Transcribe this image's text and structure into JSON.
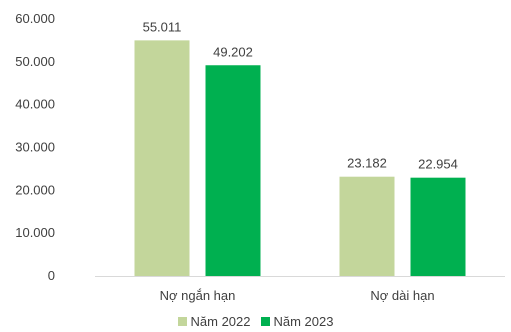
{
  "chart_data": {
    "type": "bar",
    "categories": [
      "Nợ ngắn hạn",
      "Nợ dài hạn"
    ],
    "series": [
      {
        "name": "Năm 2022",
        "values": [
          55011,
          23182
        ],
        "labels": [
          "55.011",
          "23.182"
        ],
        "color": "#c3d69b"
      },
      {
        "name": "Năm 2023",
        "values": [
          49202,
          22954
        ],
        "labels": [
          "49.202",
          "22.954"
        ],
        "color": "#00b050"
      }
    ],
    "ylim": [
      0,
      60000
    ],
    "yticks": [
      0,
      10000,
      20000,
      30000,
      40000,
      50000,
      60000
    ],
    "ytick_labels": [
      "0",
      "10.000",
      "20.000",
      "30.000",
      "40.000",
      "50.000",
      "60.000"
    ],
    "grid": false,
    "legend_position": "bottom"
  }
}
